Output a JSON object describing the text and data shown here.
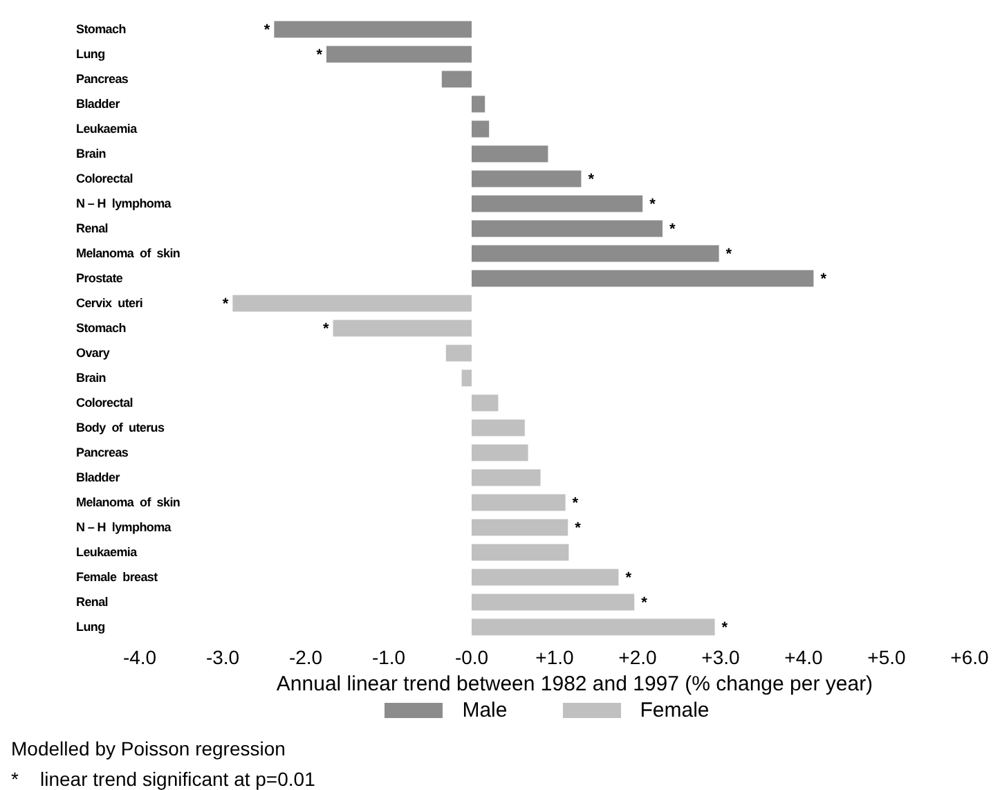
{
  "chart_data": {
    "type": "bar",
    "orientation": "horizontal",
    "stacked": true,
    "categories": [
      "Stomach",
      "Lung",
      "Pancreas",
      "Bladder",
      "Leukaemia",
      "Brain",
      "Colorectal",
      "N – H  lymphoma",
      "Renal",
      "Melanoma  of  skin",
      "Prostate",
      "Cervix  uteri",
      "Stomach",
      "Ovary",
      "Brain",
      "Colorectal",
      "Body  of  uterus",
      "Pancreas",
      "Bladder",
      "Melanoma  of  skin",
      "N – H  lymphoma",
      "Leukaemia",
      "Female  breast",
      "Renal",
      "Lung"
    ],
    "series": [
      {
        "name": "Male",
        "color": "#8c8c8c",
        "values": [
          -2.38,
          -1.75,
          -0.36,
          0.16,
          0.21,
          0.92,
          1.32,
          2.06,
          2.3,
          2.98,
          4.12,
          null,
          null,
          null,
          null,
          null,
          null,
          null,
          null,
          null,
          null,
          null,
          null,
          null,
          null
        ],
        "value_labels": [
          "*",
          "*",
          null,
          null,
          null,
          null,
          "*",
          "*",
          "*",
          "*",
          "*",
          null,
          null,
          null,
          null,
          null,
          null,
          null,
          null,
          null,
          null,
          null,
          null,
          null,
          null
        ]
      },
      {
        "name": "Female",
        "color": "#c0c0c0",
        "values": [
          null,
          null,
          null,
          null,
          null,
          null,
          null,
          null,
          null,
          null,
          null,
          -2.88,
          -1.67,
          -0.31,
          -0.12,
          0.32,
          0.64,
          0.68,
          0.83,
          1.13,
          1.16,
          1.17,
          1.77,
          1.96,
          2.93
        ],
        "value_labels": [
          null,
          null,
          null,
          null,
          null,
          null,
          null,
          null,
          null,
          null,
          null,
          "*",
          "*",
          null,
          null,
          null,
          null,
          null,
          null,
          "*",
          "*",
          null,
          "*",
          "*",
          "*"
        ]
      }
    ],
    "xlim": [
      -4,
      6
    ],
    "xticks": [
      {
        "value": -4,
        "label": "-4.0"
      },
      {
        "value": -3,
        "label": "-3.0"
      },
      {
        "value": -2,
        "label": "-2.0"
      },
      {
        "value": -1,
        "label": "-1.0"
      },
      {
        "value": 0,
        "label": "-0.0"
      },
      {
        "value": 1,
        "label": "+1.0"
      },
      {
        "value": 2,
        "label": "+2.0"
      },
      {
        "value": 3,
        "label": "+3.0"
      },
      {
        "value": 4,
        "label": "+4.0"
      },
      {
        "value": 5,
        "label": "+5.0"
      },
      {
        "value": 6,
        "label": "+6.0"
      }
    ],
    "xlabel": "Annual linear trend between 1982 and 1997 (% change per year)",
    "legend": "bottom",
    "grid": false,
    "annotations": [
      "Modelled by Poisson regression",
      "*    linear trend significant at p=0.01"
    ]
  }
}
